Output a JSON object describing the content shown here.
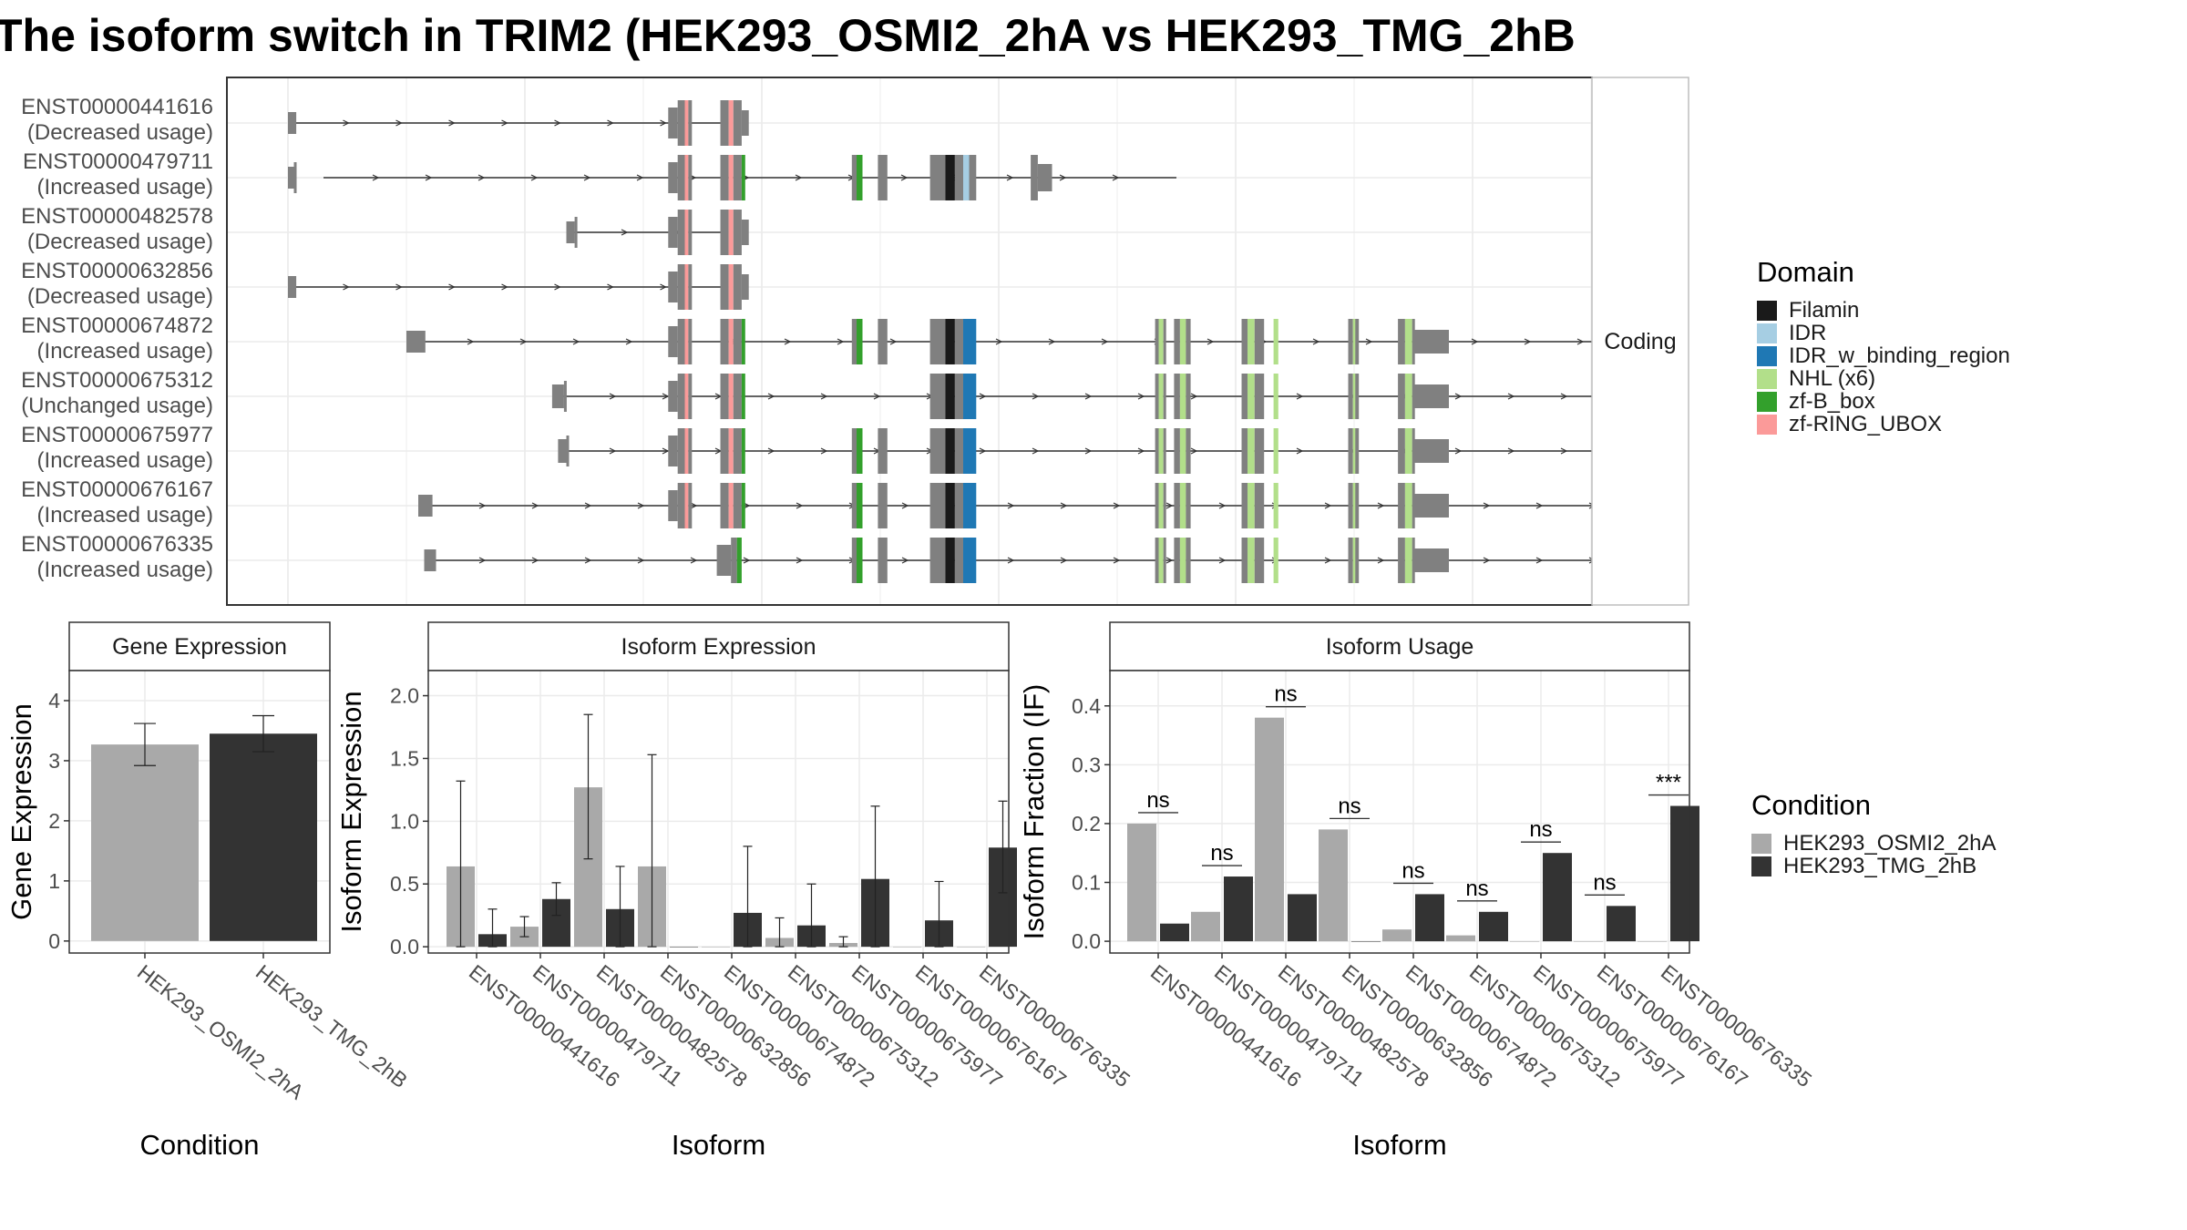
{
  "title": "The isoform switch in TRIM2 (HEK293_OSMI2_2hA vs HEK293_TMG_2hB",
  "colors": {
    "exon": "#808080",
    "cond1": "#A9A9A9",
    "cond2": "#333333",
    "panel_border": "#333333",
    "strip_bg": "#ffffff",
    "grid": "#ebebeb",
    "grid_minor": "#f5f5f5"
  },
  "domains": [
    {
      "name": "Filamin",
      "color": "#1a1a1a"
    },
    {
      "name": "IDR",
      "color": "#a6cee3"
    },
    {
      "name": "IDR_w_binding_region",
      "color": "#1f78b4"
    },
    {
      "name": "NHL (x6)",
      "color": "#b2df8a"
    },
    {
      "name": "zf-B_box",
      "color": "#33a02c"
    },
    {
      "name": "zf-RING_UBOX",
      "color": "#fb9a99"
    }
  ],
  "structure": {
    "strip_label": "Coding",
    "legend_title": "Domain",
    "isoforms": [
      {
        "id": "ENST00000441616",
        "status": "(Decreased usage)",
        "start": 0.2,
        "end": 3.9,
        "exons": [
          "T",
          "R",
          "RL"
        ]
      },
      {
        "id": "ENST00000479711",
        "status": "(Increased usage)",
        "start": 0.3,
        "end": 7.5,
        "exons": [
          "T0",
          "R",
          "RB",
          "B",
          "P",
          "F1",
          "Fidr",
          "END479"
        ]
      },
      {
        "id": "ENST00000482578",
        "status": "(Decreased usage)",
        "start": 2.4,
        "end": 3.9,
        "exons": [
          "T482",
          "R",
          "RL"
        ]
      },
      {
        "id": "ENST00000632856",
        "status": "(Decreased usage)",
        "start": 0.2,
        "end": 3.9,
        "exons": [
          "T",
          "R",
          "RL"
        ]
      },
      {
        "id": "ENST00000674872",
        "status": "(Increased usage)",
        "start": 1.1,
        "end": 11.2,
        "exons": [
          "T674",
          "R",
          "RB",
          "B",
          "P",
          "F2",
          "N",
          "E"
        ]
      },
      {
        "id": "ENST00000675312",
        "status": "(Unchanged usage)",
        "start": 2.3,
        "end": 11.2,
        "exons": [
          "T675",
          "R",
          "RB",
          "F2",
          "N",
          "E"
        ]
      },
      {
        "id": "ENST00000675977",
        "status": "(Increased usage)",
        "start": 2.3,
        "end": 11.2,
        "exons": [
          "T6759",
          "R",
          "RB",
          "B",
          "P",
          "F2",
          "N",
          "E"
        ]
      },
      {
        "id": "ENST00000676167",
        "status": "(Increased usage)",
        "start": 1.2,
        "end": 11.2,
        "exons": [
          "T6761",
          "R",
          "RB",
          "B",
          "P",
          "F2",
          "N",
          "E"
        ]
      },
      {
        "id": "ENST00000676335",
        "status": "(Increased usage)",
        "start": 1.2,
        "end": 11.2,
        "exons": [
          "T6763",
          "RB2",
          "B",
          "P",
          "F2",
          "N",
          "E"
        ]
      }
    ]
  },
  "legend_condition": {
    "title": "Condition",
    "items": [
      "HEK293_OSMI2_2hA",
      "HEK293_TMG_2hB"
    ]
  },
  "chart_data": [
    {
      "type": "bar",
      "title": "Gene Expression",
      "xlabel": "Condition",
      "ylabel": "Gene Expression",
      "categories": [
        "HEK293_OSMI2_2hA",
        "HEK293_TMG_2hB"
      ],
      "values": [
        3.27,
        3.45
      ],
      "err_low": [
        2.92,
        3.15
      ],
      "err_high": [
        3.62,
        3.75
      ],
      "ylim": [
        -0.2,
        4.5
      ],
      "yticks": [
        "0",
        "1",
        "2",
        "3",
        "4"
      ]
    },
    {
      "type": "bar",
      "title": "Isoform Expression",
      "xlabel": "Isoform",
      "ylabel": "Isoform Expression",
      "ylim": [
        -0.05,
        2.2
      ],
      "yticks": [
        "0.0",
        "0.5",
        "1.0",
        "1.5",
        "2.0"
      ],
      "categories": [
        "ENST00000441616",
        "ENST00000479711",
        "ENST00000482578",
        "ENST00000632856",
        "ENST00000674872",
        "ENST00000675312",
        "ENST00000675977",
        "ENST00000676167",
        "ENST00000676335"
      ],
      "series": [
        {
          "name": "HEK293_OSMI2_2hA",
          "values": [
            0.64,
            0.16,
            1.27,
            0.64,
            0.0,
            0.07,
            0.03,
            0.0,
            0.0
          ],
          "err_low": [
            0.0,
            0.08,
            0.7,
            0.0,
            0.0,
            0.0,
            0.0,
            0.0,
            0.0
          ],
          "err_high": [
            1.32,
            0.24,
            1.85,
            1.53,
            0.0,
            0.23,
            0.08,
            0.0,
            0.0
          ]
        },
        {
          "name": "HEK293_TMG_2hB",
          "values": [
            0.1,
            0.38,
            0.3,
            0.0,
            0.27,
            0.17,
            0.54,
            0.21,
            0.79
          ],
          "err_low": [
            0.0,
            0.25,
            0.0,
            0.0,
            0.0,
            0.0,
            0.0,
            0.0,
            0.43
          ],
          "err_high": [
            0.3,
            0.51,
            0.64,
            0.0,
            0.8,
            0.5,
            1.12,
            0.52,
            1.16
          ]
        }
      ]
    },
    {
      "type": "bar",
      "title": "Isoform Usage",
      "xlabel": "Isoform",
      "ylabel": "Isoform Fraction (IF)",
      "ylim": [
        -0.02,
        0.46
      ],
      "yticks": [
        "0.0",
        "0.1",
        "0.2",
        "0.3",
        "0.4"
      ],
      "categories": [
        "ENST00000441616",
        "ENST00000479711",
        "ENST00000482578",
        "ENST00000632856",
        "ENST00000674872",
        "ENST00000675312",
        "ENST00000675977",
        "ENST00000676167",
        "ENST00000676335"
      ],
      "series": [
        {
          "name": "HEK293_OSMI2_2hA",
          "values": [
            0.2,
            0.05,
            0.38,
            0.19,
            0.02,
            0.01,
            0.0,
            0.0,
            0.0
          ]
        },
        {
          "name": "HEK293_TMG_2hB",
          "values": [
            0.03,
            0.11,
            0.08,
            0.0,
            0.08,
            0.05,
            0.15,
            0.06,
            0.23
          ]
        }
      ],
      "significance": [
        "ns",
        "ns",
        "ns",
        "ns",
        "ns",
        "ns",
        "ns",
        "ns",
        "***"
      ]
    }
  ]
}
